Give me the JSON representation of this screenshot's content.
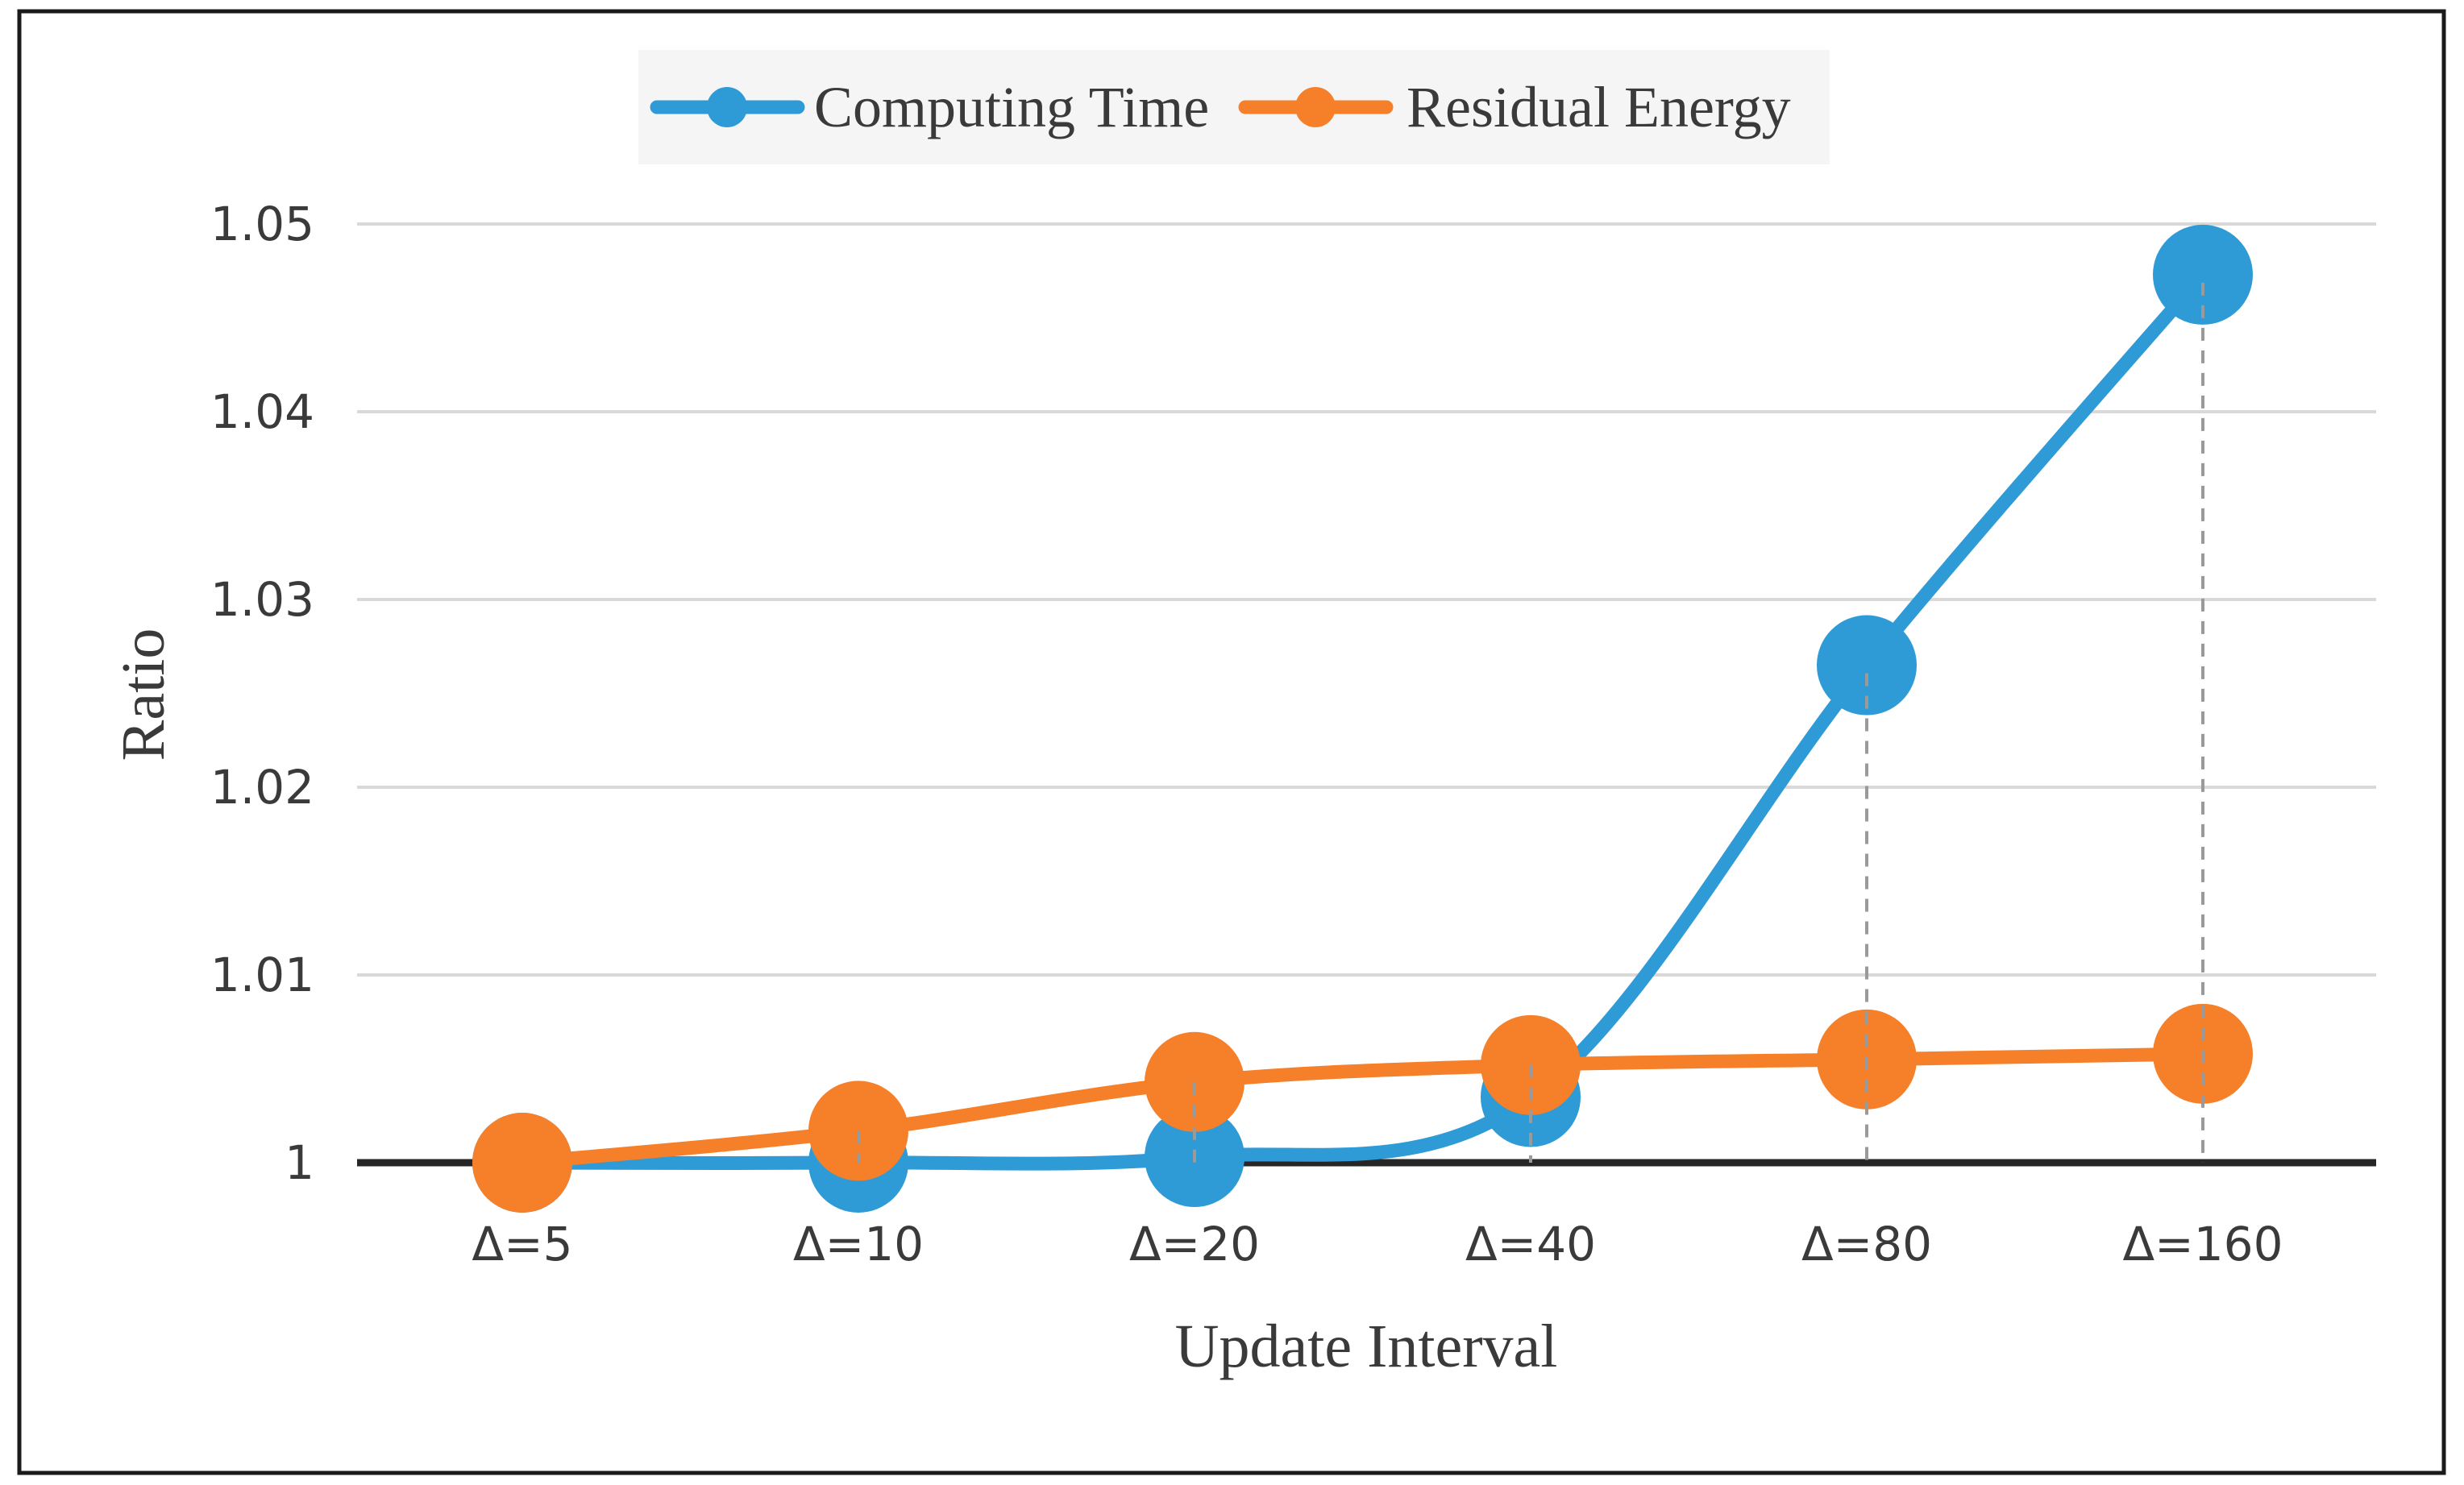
{
  "chart_data": {
    "type": "line",
    "categories": [
      "Δ=5",
      "Δ=10",
      "Δ=20",
      "Δ=40",
      "Δ=80",
      "Δ=160"
    ],
    "series": [
      {
        "name": "Computing Time",
        "values": [
          1.0,
          1.0,
          1.0003,
          1.0035,
          1.0265,
          1.0473
        ],
        "color": "#2E9AD6"
      },
      {
        "name": "Residual Energy",
        "values": [
          1.0,
          1.0017,
          1.0043,
          1.0052,
          1.0055,
          1.0058
        ],
        "color": "#F6802A"
      }
    ],
    "xlabel": "Update Interval",
    "ylabel": "Ratio",
    "ylim": [
      1.0,
      1.05
    ],
    "yticks": [
      {
        "value": 1.0,
        "label": "1"
      },
      {
        "value": 1.01,
        "label": "1.01"
      },
      {
        "value": 1.02,
        "label": "1.02"
      },
      {
        "value": 1.03,
        "label": "1.03"
      },
      {
        "value": 1.04,
        "label": "1.04"
      },
      {
        "value": 1.05,
        "label": "1.05"
      }
    ],
    "grid": true,
    "legend_position": "top-center",
    "drop_lines": [
      "Δ=80",
      "Δ=160"
    ]
  }
}
